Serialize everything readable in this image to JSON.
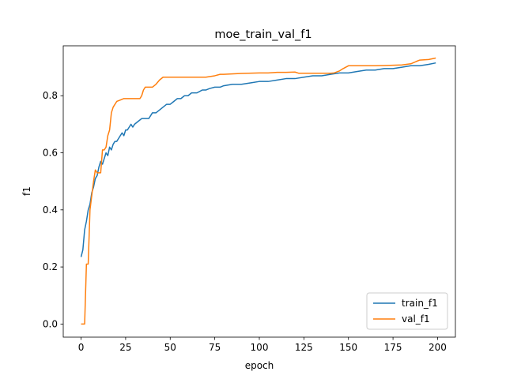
{
  "chart_data": {
    "type": "line",
    "title": "moe_train_val_f1",
    "xlabel": "epoch",
    "ylabel": "f1",
    "xlim": [
      -10,
      210
    ],
    "ylim": [
      -0.046,
      0.975
    ],
    "xticks": [
      0,
      25,
      50,
      75,
      100,
      125,
      150,
      175,
      200
    ],
    "yticks": [
      0.0,
      0.2,
      0.4,
      0.6,
      0.8
    ],
    "ytick_labels": [
      "0.0",
      "0.2",
      "0.4",
      "0.6",
      "0.8"
    ],
    "grid": false,
    "legend_position": "lower-right",
    "series": [
      {
        "name": "train_f1",
        "color": "#1f77b4",
        "points": [
          [
            0,
            0.235
          ],
          [
            1,
            0.26
          ],
          [
            2,
            0.33
          ],
          [
            3,
            0.36
          ],
          [
            4,
            0.4
          ],
          [
            5,
            0.42
          ],
          [
            6,
            0.46
          ],
          [
            7,
            0.48
          ],
          [
            8,
            0.51
          ],
          [
            9,
            0.52
          ],
          [
            10,
            0.55
          ],
          [
            11,
            0.57
          ],
          [
            12,
            0.56
          ],
          [
            13,
            0.58
          ],
          [
            14,
            0.6
          ],
          [
            15,
            0.59
          ],
          [
            16,
            0.62
          ],
          [
            17,
            0.61
          ],
          [
            18,
            0.63
          ],
          [
            19,
            0.64
          ],
          [
            20,
            0.64
          ],
          [
            21,
            0.65
          ],
          [
            22,
            0.66
          ],
          [
            23,
            0.67
          ],
          [
            24,
            0.66
          ],
          [
            25,
            0.68
          ],
          [
            26,
            0.68
          ],
          [
            27,
            0.69
          ],
          [
            28,
            0.7
          ],
          [
            29,
            0.69
          ],
          [
            30,
            0.7
          ],
          [
            32,
            0.71
          ],
          [
            34,
            0.72
          ],
          [
            36,
            0.72
          ],
          [
            38,
            0.72
          ],
          [
            40,
            0.74
          ],
          [
            42,
            0.74
          ],
          [
            44,
            0.75
          ],
          [
            46,
            0.76
          ],
          [
            48,
            0.77
          ],
          [
            50,
            0.77
          ],
          [
            52,
            0.78
          ],
          [
            54,
            0.79
          ],
          [
            56,
            0.79
          ],
          [
            58,
            0.8
          ],
          [
            60,
            0.8
          ],
          [
            62,
            0.81
          ],
          [
            65,
            0.81
          ],
          [
            68,
            0.82
          ],
          [
            70,
            0.82
          ],
          [
            72,
            0.825
          ],
          [
            75,
            0.83
          ],
          [
            78,
            0.83
          ],
          [
            80,
            0.835
          ],
          [
            85,
            0.84
          ],
          [
            90,
            0.84
          ],
          [
            95,
            0.845
          ],
          [
            100,
            0.85
          ],
          [
            105,
            0.85
          ],
          [
            110,
            0.855
          ],
          [
            115,
            0.86
          ],
          [
            120,
            0.86
          ],
          [
            125,
            0.865
          ],
          [
            130,
            0.87
          ],
          [
            135,
            0.87
          ],
          [
            140,
            0.875
          ],
          [
            145,
            0.88
          ],
          [
            150,
            0.88
          ],
          [
            155,
            0.885
          ],
          [
            160,
            0.89
          ],
          [
            165,
            0.89
          ],
          [
            170,
            0.895
          ],
          [
            175,
            0.895
          ],
          [
            180,
            0.9
          ],
          [
            185,
            0.905
          ],
          [
            190,
            0.905
          ],
          [
            195,
            0.91
          ],
          [
            199,
            0.915
          ]
        ]
      },
      {
        "name": "val_f1",
        "color": "#ff7f0e",
        "points": [
          [
            0,
            0.0
          ],
          [
            1,
            0.0
          ],
          [
            2,
            0.0
          ],
          [
            3,
            0.21
          ],
          [
            4,
            0.21
          ],
          [
            5,
            0.4
          ],
          [
            6,
            0.45
          ],
          [
            7,
            0.5
          ],
          [
            8,
            0.54
          ],
          [
            9,
            0.53
          ],
          [
            10,
            0.53
          ],
          [
            11,
            0.53
          ],
          [
            12,
            0.61
          ],
          [
            13,
            0.61
          ],
          [
            14,
            0.62
          ],
          [
            15,
            0.66
          ],
          [
            16,
            0.68
          ],
          [
            17,
            0.74
          ],
          [
            18,
            0.76
          ],
          [
            19,
            0.77
          ],
          [
            20,
            0.78
          ],
          [
            22,
            0.785
          ],
          [
            24,
            0.79
          ],
          [
            26,
            0.79
          ],
          [
            28,
            0.79
          ],
          [
            30,
            0.79
          ],
          [
            33,
            0.79
          ],
          [
            34,
            0.8
          ],
          [
            35,
            0.82
          ],
          [
            36,
            0.83
          ],
          [
            38,
            0.83
          ],
          [
            40,
            0.83
          ],
          [
            42,
            0.84
          ],
          [
            44,
            0.855
          ],
          [
            46,
            0.865
          ],
          [
            50,
            0.865
          ],
          [
            60,
            0.865
          ],
          [
            70,
            0.865
          ],
          [
            75,
            0.87
          ],
          [
            78,
            0.875
          ],
          [
            80,
            0.875
          ],
          [
            90,
            0.878
          ],
          [
            100,
            0.88
          ],
          [
            105,
            0.88
          ],
          [
            110,
            0.882
          ],
          [
            115,
            0.882
          ],
          [
            120,
            0.883
          ],
          [
            122,
            0.879
          ],
          [
            125,
            0.879
          ],
          [
            130,
            0.879
          ],
          [
            135,
            0.879
          ],
          [
            140,
            0.879
          ],
          [
            142,
            0.88
          ],
          [
            145,
            0.887
          ],
          [
            147,
            0.895
          ],
          [
            150,
            0.905
          ],
          [
            155,
            0.905
          ],
          [
            160,
            0.905
          ],
          [
            165,
            0.905
          ],
          [
            170,
            0.906
          ],
          [
            175,
            0.907
          ],
          [
            180,
            0.908
          ],
          [
            185,
            0.912
          ],
          [
            188,
            0.92
          ],
          [
            190,
            0.925
          ],
          [
            195,
            0.927
          ],
          [
            199,
            0.932
          ]
        ]
      }
    ]
  }
}
